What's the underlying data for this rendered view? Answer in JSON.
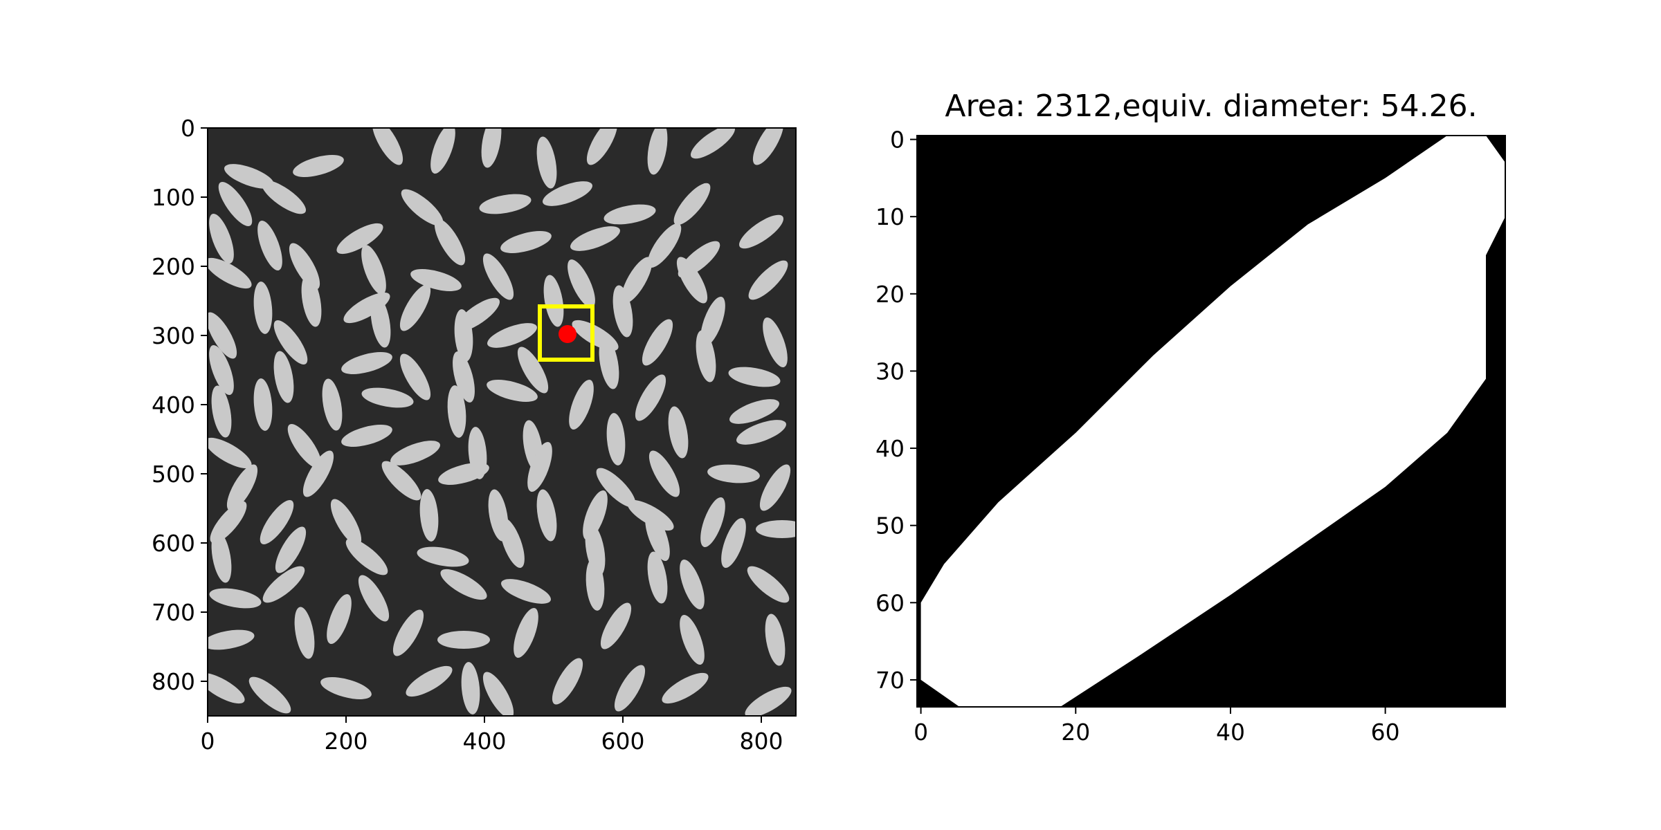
{
  "colors": {
    "background": "#ffffff",
    "image_dark": "#2a2a2a",
    "grain": "#c9c9c9",
    "marker": "#ff0000",
    "box": "#ffff00",
    "mask_foreground": "#ffffff",
    "mask_background": "#000000"
  },
  "chart_data": [
    {
      "type": "image",
      "description_free": true,
      "title": "",
      "x_ticks": [
        {
          "value": 0,
          "label": "0"
        },
        {
          "value": 200,
          "label": "200"
        },
        {
          "value": 400,
          "label": "400"
        },
        {
          "value": 600,
          "label": "600"
        },
        {
          "value": 800,
          "label": "800"
        }
      ],
      "y_ticks": [
        {
          "value": 0,
          "label": "0"
        },
        {
          "value": 100,
          "label": "100"
        },
        {
          "value": 200,
          "label": "200"
        },
        {
          "value": 300,
          "label": "300"
        },
        {
          "value": 400,
          "label": "400"
        },
        {
          "value": 500,
          "label": "500"
        },
        {
          "value": 600,
          "label": "600"
        },
        {
          "value": 700,
          "label": "700"
        },
        {
          "value": 800,
          "label": "800"
        }
      ],
      "xlim": [
        0,
        850
      ],
      "ylim": [
        850,
        0
      ],
      "selected_point": {
        "x": 520,
        "y": 298
      },
      "selection_box": {
        "x0": 480,
        "y0": 258,
        "x1": 556,
        "y1": 335
      },
      "grains": [
        [
          60,
          70,
          20
        ],
        [
          160,
          55,
          -15
        ],
        [
          260,
          20,
          60
        ],
        [
          340,
          30,
          -70
        ],
        [
          410,
          20,
          -80
        ],
        [
          490,
          50,
          80
        ],
        [
          570,
          20,
          -60
        ],
        [
          650,
          30,
          -80
        ],
        [
          730,
          20,
          -35
        ],
        [
          810,
          20,
          -60
        ],
        [
          40,
          110,
          55
        ],
        [
          110,
          100,
          35
        ],
        [
          310,
          115,
          40
        ],
        [
          430,
          110,
          -10
        ],
        [
          520,
          95,
          -20
        ],
        [
          610,
          125,
          -10
        ],
        [
          700,
          110,
          -50
        ],
        [
          800,
          150,
          -35
        ],
        [
          20,
          160,
          70
        ],
        [
          90,
          170,
          70
        ],
        [
          220,
          160,
          -30
        ],
        [
          350,
          165,
          60
        ],
        [
          460,
          165,
          -15
        ],
        [
          560,
          160,
          -20
        ],
        [
          660,
          170,
          -55
        ],
        [
          710,
          190,
          -40
        ],
        [
          30,
          210,
          30
        ],
        [
          140,
          200,
          60
        ],
        [
          240,
          205,
          70
        ],
        [
          330,
          220,
          15
        ],
        [
          420,
          215,
          60
        ],
        [
          540,
          225,
          65
        ],
        [
          620,
          220,
          -60
        ],
        [
          700,
          220,
          60
        ],
        [
          810,
          220,
          -45
        ],
        [
          80,
          260,
          85
        ],
        [
          150,
          250,
          80
        ],
        [
          230,
          260,
          -30
        ],
        [
          300,
          260,
          -60
        ],
        [
          390,
          270,
          -35
        ],
        [
          500,
          250,
          80
        ],
        [
          600,
          265,
          80
        ],
        [
          730,
          280,
          -70
        ],
        [
          20,
          300,
          60
        ],
        [
          120,
          310,
          55
        ],
        [
          250,
          280,
          80
        ],
        [
          370,
          300,
          85
        ],
        [
          440,
          300,
          -20
        ],
        [
          560,
          300,
          30
        ],
        [
          650,
          310,
          -60
        ],
        [
          820,
          310,
          70
        ],
        [
          20,
          350,
          70
        ],
        [
          110,
          360,
          80
        ],
        [
          230,
          340,
          -15
        ],
        [
          300,
          360,
          60
        ],
        [
          370,
          360,
          75
        ],
        [
          470,
          350,
          60
        ],
        [
          580,
          340,
          80
        ],
        [
          720,
          330,
          80
        ],
        [
          790,
          360,
          10
        ],
        [
          20,
          410,
          80
        ],
        [
          80,
          400,
          85
        ],
        [
          180,
          400,
          80
        ],
        [
          260,
          390,
          10
        ],
        [
          360,
          410,
          85
        ],
        [
          440,
          380,
          15
        ],
        [
          540,
          400,
          -70
        ],
        [
          640,
          390,
          -60
        ],
        [
          790,
          410,
          -20
        ],
        [
          30,
          470,
          30
        ],
        [
          140,
          460,
          55
        ],
        [
          230,
          445,
          -15
        ],
        [
          300,
          470,
          -20
        ],
        [
          390,
          470,
          85
        ],
        [
          470,
          460,
          80
        ],
        [
          590,
          450,
          85
        ],
        [
          680,
          440,
          80
        ],
        [
          800,
          440,
          -20
        ],
        [
          50,
          520,
          -60
        ],
        [
          160,
          500,
          -60
        ],
        [
          280,
          510,
          45
        ],
        [
          370,
          500,
          -15
        ],
        [
          480,
          490,
          -70
        ],
        [
          590,
          520,
          45
        ],
        [
          660,
          500,
          60
        ],
        [
          760,
          500,
          5
        ],
        [
          820,
          520,
          -60
        ],
        [
          30,
          570,
          -50
        ],
        [
          100,
          570,
          -55
        ],
        [
          200,
          570,
          60
        ],
        [
          320,
          560,
          85
        ],
        [
          420,
          560,
          80
        ],
        [
          490,
          560,
          80
        ],
        [
          560,
          560,
          -70
        ],
        [
          640,
          560,
          30
        ],
        [
          730,
          570,
          -70
        ],
        [
          830,
          580,
          0
        ],
        [
          20,
          620,
          80
        ],
        [
          120,
          610,
          -60
        ],
        [
          230,
          620,
          40
        ],
        [
          340,
          620,
          10
        ],
        [
          440,
          600,
          70
        ],
        [
          560,
          610,
          80
        ],
        [
          650,
          590,
          70
        ],
        [
          760,
          600,
          -70
        ],
        [
          40,
          680,
          10
        ],
        [
          110,
          660,
          -40
        ],
        [
          240,
          680,
          60
        ],
        [
          370,
          660,
          30
        ],
        [
          460,
          670,
          20
        ],
        [
          560,
          660,
          85
        ],
        [
          650,
          650,
          80
        ],
        [
          700,
          660,
          70
        ],
        [
          810,
          660,
          40
        ],
        [
          30,
          740,
          -10
        ],
        [
          140,
          730,
          80
        ],
        [
          190,
          710,
          -70
        ],
        [
          290,
          730,
          -60
        ],
        [
          370,
          740,
          0
        ],
        [
          460,
          730,
          -70
        ],
        [
          590,
          720,
          -60
        ],
        [
          700,
          740,
          70
        ],
        [
          820,
          740,
          80
        ],
        [
          20,
          810,
          30
        ],
        [
          90,
          820,
          40
        ],
        [
          200,
          810,
          15
        ],
        [
          320,
          800,
          -30
        ],
        [
          380,
          810,
          85
        ],
        [
          420,
          820,
          60
        ],
        [
          520,
          800,
          -60
        ],
        [
          610,
          810,
          -60
        ],
        [
          690,
          810,
          -30
        ],
        [
          810,
          830,
          -30
        ]
      ]
    },
    {
      "type": "image",
      "title": "Area: 2312,equiv. diameter: 54.26.",
      "x_ticks": [
        {
          "value": 0,
          "label": "0"
        },
        {
          "value": 20,
          "label": "20"
        },
        {
          "value": 40,
          "label": "40"
        },
        {
          "value": 60,
          "label": "60"
        }
      ],
      "y_ticks": [
        {
          "value": 0,
          "label": "0"
        },
        {
          "value": 10,
          "label": "10"
        },
        {
          "value": 20,
          "label": "20"
        },
        {
          "value": 30,
          "label": "30"
        },
        {
          "value": 40,
          "label": "40"
        },
        {
          "value": 50,
          "label": "50"
        },
        {
          "value": 60,
          "label": "60"
        },
        {
          "value": 70,
          "label": "70"
        }
      ],
      "xlim": [
        -0.5,
        75.5
      ],
      "ylim": [
        73.5,
        -0.5
      ],
      "mask_outline": [
        [
          0,
          60
        ],
        [
          0,
          70
        ],
        [
          5,
          73.5
        ],
        [
          18,
          73.5
        ],
        [
          28,
          67
        ],
        [
          40,
          59
        ],
        [
          50,
          52
        ],
        [
          60,
          45
        ],
        [
          68,
          38
        ],
        [
          73,
          31
        ],
        [
          73,
          15
        ],
        [
          75.5,
          10
        ],
        [
          75.5,
          3
        ],
        [
          73,
          -0.5
        ],
        [
          68,
          -0.5
        ],
        [
          60,
          5
        ],
        [
          50,
          11
        ],
        [
          40,
          19
        ],
        [
          30,
          28
        ],
        [
          20,
          38
        ],
        [
          10,
          47
        ],
        [
          3,
          55
        ]
      ]
    }
  ]
}
